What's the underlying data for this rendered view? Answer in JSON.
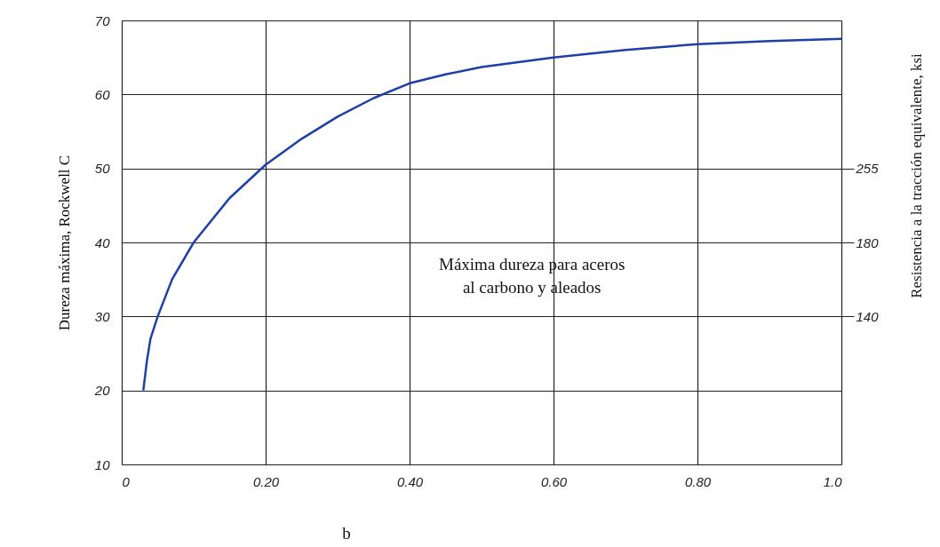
{
  "chart_data": {
    "type": "line",
    "xlabel": null,
    "ylabel": "Dureza máxima, Rockwell C",
    "y2label": "Resistencia a la tracción equivalente, ksi",
    "x": [
      0.03,
      0.035,
      0.04,
      0.05,
      0.07,
      0.1,
      0.15,
      0.2,
      0.25,
      0.3,
      0.35,
      0.4,
      0.45,
      0.5,
      0.6,
      0.7,
      0.8,
      0.9,
      1.0
    ],
    "series": [
      {
        "color": "#1f3fa8",
        "values": [
          20,
          24,
          27,
          30,
          35,
          40,
          46,
          50.5,
          54,
          57,
          59.5,
          61.5,
          62.7,
          63.7,
          65,
          66,
          66.8,
          67.2,
          67.5
        ]
      }
    ],
    "xlim": [
      0,
      1.0
    ],
    "xticks": [
      0,
      {
        "value": 0.2,
        "label": "0.20"
      },
      {
        "value": 0.4,
        "label": "0.40"
      },
      {
        "value": 0.6,
        "label": "0.60"
      },
      {
        "value": 0.8,
        "label": "0.80"
      },
      {
        "value": 1.0,
        "label": "1.0"
      }
    ],
    "ylim": [
      10,
      70
    ],
    "yticks": [
      10,
      20,
      30,
      40,
      50,
      60,
      70
    ],
    "grid": true,
    "marker": "none",
    "line_style": "solid",
    "y2_categories": [
      null,
      null,
      "255",
      "180",
      "140",
      null,
      null
    ],
    "annotations": [
      "Máxima dureza para aceros\nal carbono y aleados",
      "b"
    ]
  }
}
